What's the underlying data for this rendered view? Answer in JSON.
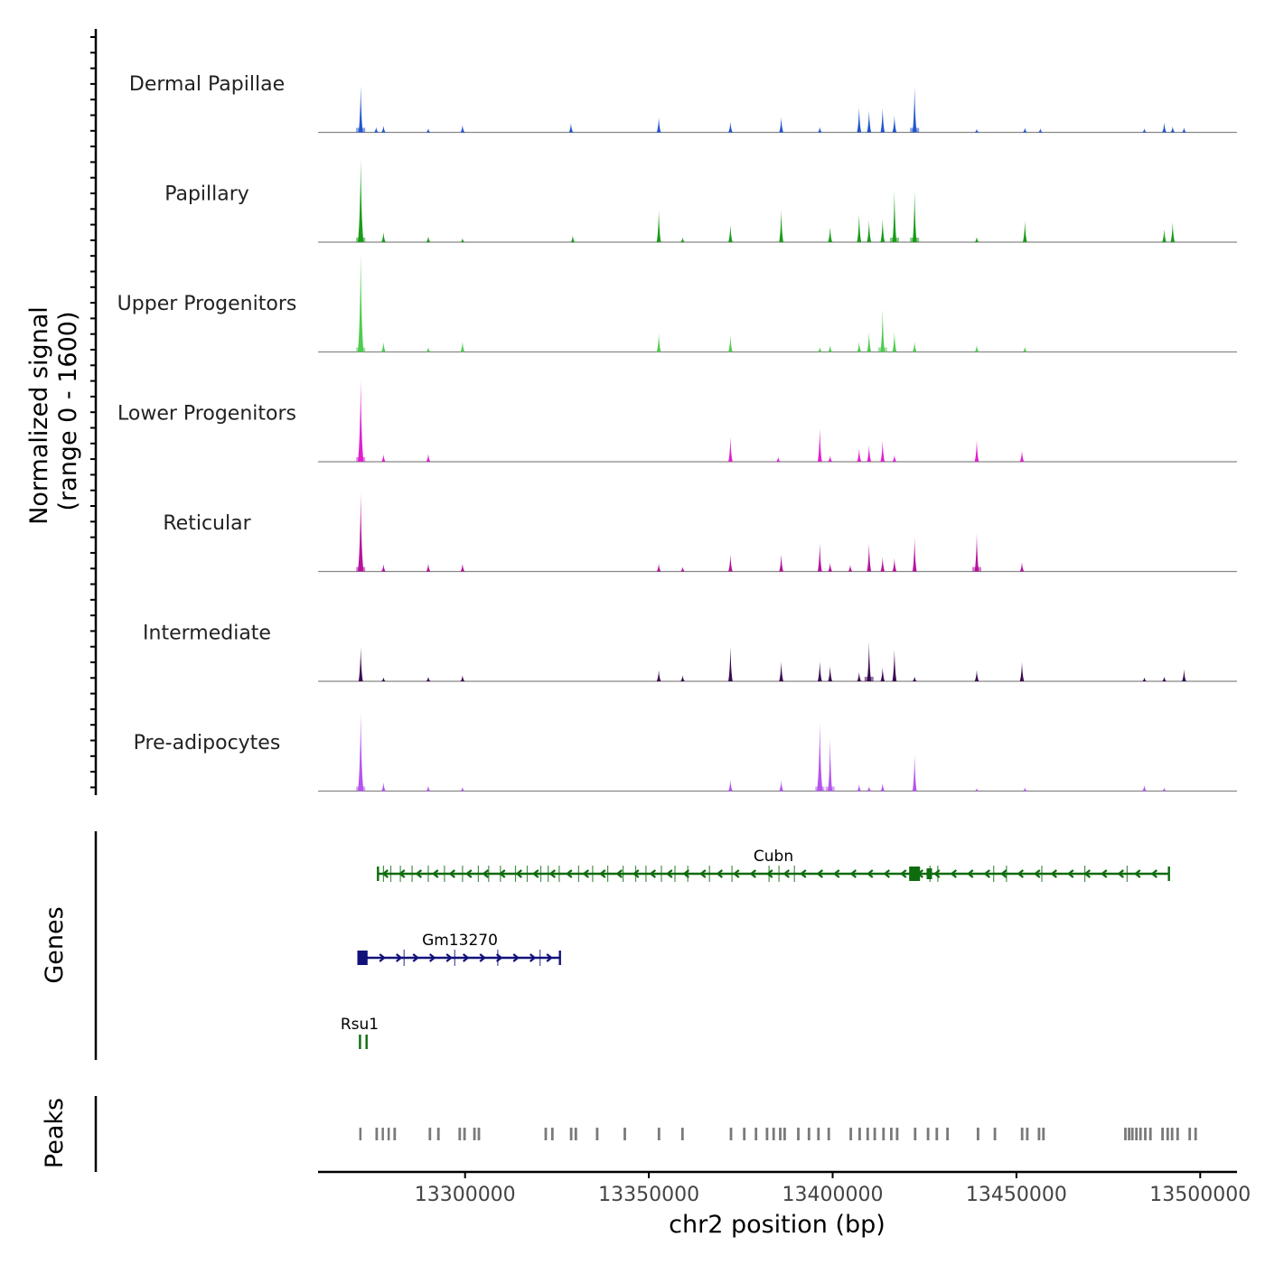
{
  "chart_data": {
    "type": "area",
    "title": "",
    "chromosome": "chr2",
    "xlabel": "chr2 position (bp)",
    "xlim": [
      13260000,
      13510000
    ],
    "x_ticks": [
      13300000,
      13350000,
      13400000,
      13450000,
      13500000
    ],
    "x_tick_labels": [
      "13300000",
      "13350000",
      "13400000",
      "13450000",
      "13500000"
    ],
    "ylabel_line1": "Normalized signal",
    "ylabel_line2": "(range 0 - 1600)",
    "ylim": [
      0,
      1600
    ],
    "series": [
      {
        "name": "Dermal Papillae",
        "color": "#2155cc",
        "peaks": [
          [
            13271600,
            700
          ],
          [
            13275800,
            80
          ],
          [
            13277800,
            100
          ],
          [
            13290000,
            60
          ],
          [
            13299300,
            110
          ],
          [
            13328800,
            140
          ],
          [
            13352700,
            230
          ],
          [
            13372200,
            160
          ],
          [
            13386000,
            230
          ],
          [
            13396500,
            80
          ],
          [
            13407200,
            380
          ],
          [
            13409900,
            330
          ],
          [
            13413600,
            370
          ],
          [
            13416800,
            250
          ],
          [
            13422300,
            680
          ],
          [
            13439200,
            50
          ],
          [
            13452300,
            70
          ],
          [
            13456500,
            60
          ],
          [
            13484800,
            60
          ],
          [
            13490200,
            150
          ],
          [
            13492500,
            90
          ],
          [
            13495600,
            70
          ]
        ]
      },
      {
        "name": "Papillary",
        "color": "#1a9c1a",
        "peaks": [
          [
            13271600,
            1250
          ],
          [
            13277800,
            150
          ],
          [
            13290000,
            90
          ],
          [
            13299300,
            60
          ],
          [
            13329300,
            100
          ],
          [
            13352700,
            480
          ],
          [
            13359200,
            70
          ],
          [
            13372200,
            260
          ],
          [
            13386000,
            480
          ],
          [
            13399300,
            230
          ],
          [
            13407200,
            420
          ],
          [
            13409900,
            330
          ],
          [
            13413600,
            350
          ],
          [
            13416800,
            780
          ],
          [
            13422300,
            770
          ],
          [
            13439200,
            80
          ],
          [
            13452300,
            320
          ],
          [
            13490200,
            200
          ],
          [
            13492500,
            300
          ]
        ]
      },
      {
        "name": "Upper Progenitors",
        "color": "#4fcc4f",
        "peaks": [
          [
            13271600,
            1500
          ],
          [
            13277800,
            150
          ],
          [
            13290000,
            70
          ],
          [
            13299300,
            160
          ],
          [
            13352700,
            280
          ],
          [
            13372200,
            250
          ],
          [
            13396500,
            70
          ],
          [
            13399300,
            100
          ],
          [
            13407200,
            150
          ],
          [
            13409900,
            300
          ],
          [
            13413600,
            650
          ],
          [
            13416800,
            300
          ],
          [
            13422300,
            150
          ],
          [
            13439200,
            100
          ],
          [
            13452300,
            80
          ]
        ]
      },
      {
        "name": "Lower Progenitors",
        "color": "#e020d0",
        "peaks": [
          [
            13271600,
            1230
          ],
          [
            13277800,
            110
          ],
          [
            13290000,
            120
          ],
          [
            13372200,
            370
          ],
          [
            13385200,
            70
          ],
          [
            13396500,
            500
          ],
          [
            13399300,
            90
          ],
          [
            13407200,
            200
          ],
          [
            13409900,
            250
          ],
          [
            13413600,
            320
          ],
          [
            13416800,
            100
          ],
          [
            13439200,
            330
          ],
          [
            13451500,
            170
          ]
        ]
      },
      {
        "name": "Reticular",
        "color": "#b5139c",
        "peaks": [
          [
            13271600,
            1180
          ],
          [
            13277800,
            110
          ],
          [
            13290000,
            120
          ],
          [
            13299300,
            120
          ],
          [
            13352700,
            120
          ],
          [
            13359200,
            70
          ],
          [
            13372200,
            260
          ],
          [
            13386000,
            260
          ],
          [
            13396500,
            430
          ],
          [
            13399300,
            130
          ],
          [
            13404800,
            100
          ],
          [
            13409900,
            420
          ],
          [
            13413600,
            220
          ],
          [
            13416800,
            200
          ],
          [
            13422300,
            500
          ],
          [
            13439200,
            570
          ],
          [
            13451500,
            140
          ]
        ]
      },
      {
        "name": "Intermediate",
        "color": "#3b0a52",
        "peaks": [
          [
            13271600,
            510
          ],
          [
            13277800,
            60
          ],
          [
            13290000,
            70
          ],
          [
            13299300,
            90
          ],
          [
            13352700,
            170
          ],
          [
            13359200,
            90
          ],
          [
            13372200,
            520
          ],
          [
            13386000,
            300
          ],
          [
            13396500,
            300
          ],
          [
            13399300,
            230
          ],
          [
            13407200,
            140
          ],
          [
            13409900,
            590
          ],
          [
            13413600,
            210
          ],
          [
            13416800,
            480
          ],
          [
            13422300,
            70
          ],
          [
            13439200,
            170
          ],
          [
            13451500,
            290
          ],
          [
            13484800,
            60
          ],
          [
            13490200,
            70
          ],
          [
            13495600,
            180
          ]
        ]
      },
      {
        "name": "Pre-adipocytes",
        "color": "#b455ee",
        "peaks": [
          [
            13271600,
            1180
          ],
          [
            13277800,
            130
          ],
          [
            13290000,
            80
          ],
          [
            13299300,
            60
          ],
          [
            13372200,
            170
          ],
          [
            13386000,
            160
          ],
          [
            13396500,
            1050
          ],
          [
            13399300,
            790
          ],
          [
            13407200,
            100
          ],
          [
            13409900,
            70
          ],
          [
            13413600,
            120
          ],
          [
            13422300,
            540
          ],
          [
            13439200,
            40
          ],
          [
            13452300,
            50
          ],
          [
            13484800,
            90
          ],
          [
            13490200,
            50
          ]
        ]
      }
    ],
    "genes_label": "Genes",
    "genes": [
      {
        "name": "Cubn",
        "strand": "-",
        "start": 13276300,
        "end": 13491500,
        "color": "#0e6b0e",
        "exons": [
          13277800,
          13279800,
          13282400,
          13285600,
          13290000,
          13294400,
          13299300,
          13303600,
          13306400,
          13309600,
          13313700,
          13316900,
          13320600,
          13322600,
          13325600,
          13330900,
          13334700,
          13338800,
          13343000,
          13346400,
          13349200,
          13353400,
          13357100,
          13360600,
          13366500,
          13372600,
          13382700,
          13385400,
          13389600,
          13426500,
          13428600,
          13443800,
          13447300,
          13456900,
          13468600,
          13480100
        ]
      },
      {
        "name": "Gm13270",
        "strand": "+",
        "start": 13271000,
        "end": 13325800,
        "color": "#12127a",
        "exons": [
          13283400,
          13297200,
          13308900,
          13320400
        ]
      },
      {
        "name": "Rsu1",
        "strand": "-",
        "start": 13271400,
        "end": 13273200,
        "color": "#0e6b0e",
        "exons": []
      }
    ],
    "peaks_label": "Peaks",
    "peaks": [
      [
        13271200,
        13271800
      ],
      [
        13275600,
        13276300
      ],
      [
        13277300,
        13277900
      ],
      [
        13278900,
        13279500
      ],
      [
        13280500,
        13281200
      ],
      [
        13290100,
        13290800
      ],
      [
        13292400,
        13293100
      ],
      [
        13298200,
        13298900
      ],
      [
        13299500,
        13300200
      ],
      [
        13302200,
        13302900
      ],
      [
        13303400,
        13304100
      ],
      [
        13321600,
        13322300
      ],
      [
        13323400,
        13324100
      ],
      [
        13328500,
        13329200
      ],
      [
        13329800,
        13330500
      ],
      [
        13335600,
        13336300
      ],
      [
        13343100,
        13343800
      ],
      [
        13352400,
        13353100
      ],
      [
        13358800,
        13359500
      ],
      [
        13372000,
        13372700
      ],
      [
        13375600,
        13376300
      ],
      [
        13378800,
        13379500
      ],
      [
        13381800,
        13382500
      ],
      [
        13383600,
        13384300
      ],
      [
        13385400,
        13386100
      ],
      [
        13386600,
        13387300
      ],
      [
        13390300,
        13391000
      ],
      [
        13393200,
        13393900
      ],
      [
        13395800,
        13396500
      ],
      [
        13398600,
        13399300
      ],
      [
        13404600,
        13405300
      ],
      [
        13407000,
        13407700
      ],
      [
        13409200,
        13409900
      ],
      [
        13411100,
        13411800
      ],
      [
        13413500,
        13414200
      ],
      [
        13415600,
        13416300
      ],
      [
        13417200,
        13417900
      ],
      [
        13422100,
        13422800
      ],
      [
        13425600,
        13426300
      ],
      [
        13428000,
        13428700
      ],
      [
        13430900,
        13431600
      ],
      [
        13439200,
        13439900
      ],
      [
        13443800,
        13444500
      ],
      [
        13451200,
        13451900
      ],
      [
        13452600,
        13453300
      ],
      [
        13455800,
        13456500
      ],
      [
        13457000,
        13457700
      ],
      [
        13479300,
        13480000
      ],
      [
        13480300,
        13481000
      ],
      [
        13481200,
        13481900
      ],
      [
        13482300,
        13483000
      ],
      [
        13483400,
        13484100
      ],
      [
        13484700,
        13485400
      ],
      [
        13486100,
        13486800
      ],
      [
        13489400,
        13490100
      ],
      [
        13490800,
        13491500
      ],
      [
        13492000,
        13492700
      ],
      [
        13493500,
        13494200
      ],
      [
        13496800,
        13497500
      ],
      [
        13498400,
        13499100
      ]
    ]
  }
}
